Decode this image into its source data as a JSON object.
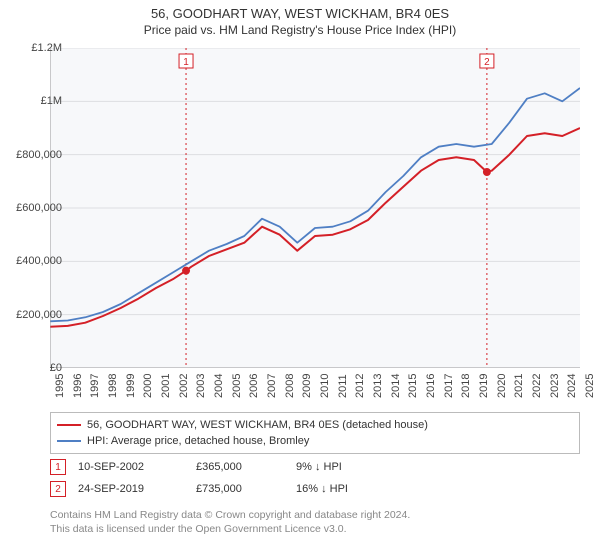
{
  "title": {
    "line1": "56, GOODHART WAY, WEST WICKHAM, BR4 0ES",
    "line2": "Price paid vs. HM Land Registry's House Price Index (HPI)"
  },
  "chart": {
    "type": "line",
    "background_color": "#f7f8fa",
    "grid_color": "#dddee1",
    "axis_color": "#999",
    "tick_fontsize": 11,
    "x": {
      "min": 1995,
      "max": 2025,
      "ticks": [
        1995,
        1996,
        1997,
        1998,
        1999,
        2000,
        2001,
        2002,
        2003,
        2004,
        2005,
        2006,
        2007,
        2008,
        2009,
        2010,
        2011,
        2012,
        2013,
        2014,
        2015,
        2016,
        2017,
        2018,
        2019,
        2020,
        2021,
        2022,
        2023,
        2024,
        2025
      ]
    },
    "y": {
      "min": 0,
      "max": 1200000,
      "ticks": [
        0,
        200000,
        400000,
        600000,
        800000,
        1000000,
        1200000
      ],
      "tick_labels": [
        "£0",
        "£200,000",
        "£400,000",
        "£600,000",
        "£800,000",
        "£1M",
        "£1.2M"
      ]
    },
    "series": [
      {
        "name": "56, GOODHART WAY, WEST WICKHAM, BR4 0ES (detached house)",
        "color": "#d42027",
        "line_width": 2,
        "points": [
          [
            1995,
            155000
          ],
          [
            1996,
            158000
          ],
          [
            1997,
            170000
          ],
          [
            1998,
            195000
          ],
          [
            1999,
            225000
          ],
          [
            2000,
            260000
          ],
          [
            2001,
            300000
          ],
          [
            2002,
            335000
          ],
          [
            2002.7,
            365000
          ],
          [
            2003,
            380000
          ],
          [
            2004,
            420000
          ],
          [
            2005,
            445000
          ],
          [
            2006,
            470000
          ],
          [
            2007,
            530000
          ],
          [
            2008,
            500000
          ],
          [
            2009,
            440000
          ],
          [
            2010,
            495000
          ],
          [
            2011,
            500000
          ],
          [
            2012,
            520000
          ],
          [
            2013,
            555000
          ],
          [
            2014,
            620000
          ],
          [
            2015,
            680000
          ],
          [
            2016,
            740000
          ],
          [
            2017,
            780000
          ],
          [
            2018,
            790000
          ],
          [
            2019,
            780000
          ],
          [
            2019.73,
            735000
          ],
          [
            2020,
            740000
          ],
          [
            2021,
            800000
          ],
          [
            2022,
            870000
          ],
          [
            2023,
            880000
          ],
          [
            2024,
            870000
          ],
          [
            2025,
            900000
          ]
        ]
      },
      {
        "name": "HPI: Average price, detached house, Bromley",
        "color": "#4f7fc4",
        "line_width": 1.8,
        "points": [
          [
            1995,
            175000
          ],
          [
            1996,
            178000
          ],
          [
            1997,
            190000
          ],
          [
            1998,
            210000
          ],
          [
            1999,
            240000
          ],
          [
            2000,
            280000
          ],
          [
            2001,
            320000
          ],
          [
            2002,
            360000
          ],
          [
            2003,
            400000
          ],
          [
            2004,
            440000
          ],
          [
            2005,
            465000
          ],
          [
            2006,
            495000
          ],
          [
            2007,
            560000
          ],
          [
            2008,
            530000
          ],
          [
            2009,
            470000
          ],
          [
            2010,
            525000
          ],
          [
            2011,
            530000
          ],
          [
            2012,
            550000
          ],
          [
            2013,
            590000
          ],
          [
            2014,
            660000
          ],
          [
            2015,
            720000
          ],
          [
            2016,
            790000
          ],
          [
            2017,
            830000
          ],
          [
            2018,
            840000
          ],
          [
            2019,
            830000
          ],
          [
            2020,
            840000
          ],
          [
            2021,
            920000
          ],
          [
            2022,
            1010000
          ],
          [
            2023,
            1030000
          ],
          [
            2024,
            1000000
          ],
          [
            2025,
            1050000
          ]
        ]
      }
    ],
    "markers": [
      {
        "label": "1",
        "x": 2002.7,
        "y": 365000,
        "color": "#d42027"
      },
      {
        "label": "2",
        "x": 2019.73,
        "y": 735000,
        "color": "#d42027"
      }
    ],
    "vlines": [
      {
        "x": 2002.7,
        "color": "#d42027",
        "dash": "2,3"
      },
      {
        "x": 2019.73,
        "color": "#d42027",
        "dash": "2,3"
      }
    ]
  },
  "legend": {
    "items": [
      {
        "label": "56, GOODHART WAY, WEST WICKHAM, BR4 0ES (detached house)",
        "color": "#d42027"
      },
      {
        "label": "HPI: Average price, detached house, Bromley",
        "color": "#4f7fc4"
      }
    ]
  },
  "events": [
    {
      "num": "1",
      "date": "10-SEP-2002",
      "price": "£365,000",
      "delta": "9% ↓ HPI",
      "color": "#d42027"
    },
    {
      "num": "2",
      "date": "24-SEP-2019",
      "price": "£735,000",
      "delta": "16% ↓ HPI",
      "color": "#d42027"
    }
  ],
  "footnote": {
    "line1": "Contains HM Land Registry data © Crown copyright and database right 2024.",
    "line2": "This data is licensed under the Open Government Licence v3.0."
  }
}
